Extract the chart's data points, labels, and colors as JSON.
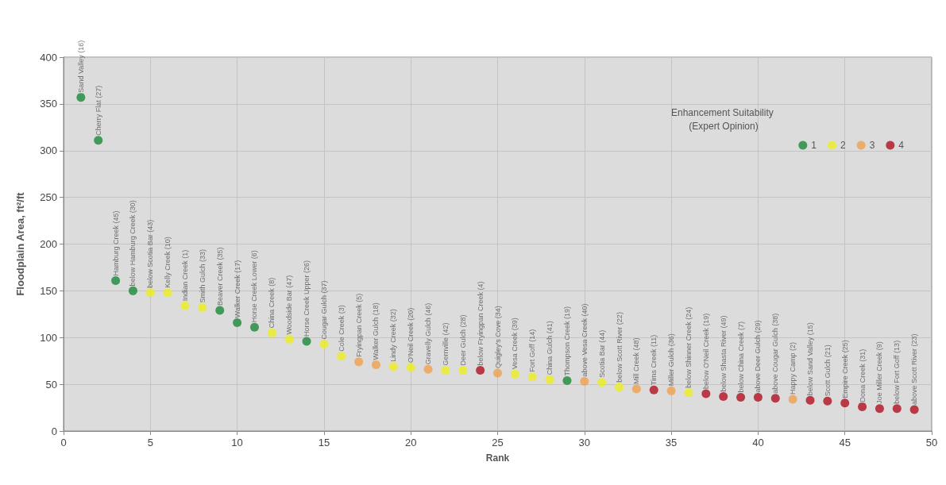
{
  "chart_data": {
    "type": "scatter",
    "xlabel": "Rank",
    "ylabel": "Floodplain Area, ft²/ft",
    "legend_title": "Enhancement Suitability (Expert Opinion)",
    "xlim": [
      0,
      50
    ],
    "xticks": [
      0,
      5,
      10,
      15,
      20,
      25,
      30,
      35,
      40,
      45,
      50
    ],
    "ylim": [
      0,
      400
    ],
    "yticks": [
      0,
      50,
      100,
      150,
      200,
      250,
      300,
      350,
      400
    ],
    "grid": true,
    "legend": "top right",
    "marker": "circle",
    "series": [
      {
        "name": "1",
        "color": "#1a8a3a",
        "x": [
          1,
          2,
          3,
          4,
          9,
          10,
          11,
          14,
          29
        ],
        "values": [
          357,
          311,
          161,
          150,
          129,
          116,
          111,
          96,
          54
        ]
      },
      {
        "name": "2",
        "color": "#eeee22",
        "x": [
          5,
          6,
          7,
          8,
          12,
          13,
          15,
          16,
          19,
          20,
          22,
          23,
          26,
          27,
          28,
          31,
          32,
          36
        ],
        "values": [
          148,
          148,
          134,
          132,
          105,
          98,
          93,
          80,
          69,
          68,
          65,
          65,
          61,
          58,
          55,
          52,
          47,
          41
        ]
      },
      {
        "name": "3",
        "color": "#f0a050",
        "x": [
          17,
          18,
          21,
          25,
          30,
          33,
          35,
          42
        ],
        "values": [
          74,
          71,
          66,
          62,
          53,
          45,
          43,
          34
        ]
      },
      {
        "name": "4",
        "color": "#b01020",
        "x": [
          24,
          34,
          37,
          38,
          39,
          40,
          41,
          43,
          44,
          45,
          46,
          47,
          48,
          49
        ],
        "values": [
          65,
          44,
          40,
          37,
          36,
          36,
          35,
          33,
          32,
          30,
          26,
          24,
          24,
          23
        ]
      }
    ],
    "annotations": [
      {
        "text": "Sand Valley (16)",
        "x": 1,
        "y": 357
      },
      {
        "text": "Cherry Flat (27)",
        "x": 2,
        "y": 311
      },
      {
        "text": "Hamburg Creek (45)",
        "x": 3,
        "y": 161
      },
      {
        "text": "below Hamburg Creek (30)",
        "x": 4,
        "y": 150
      },
      {
        "text": "below Scotia Bar (43)",
        "x": 5,
        "y": 148
      },
      {
        "text": "Kelly Creek (10)",
        "x": 6,
        "y": 148
      },
      {
        "text": "Indian Creek (1)",
        "x": 7,
        "y": 134
      },
      {
        "text": "Smith Gulch (33)",
        "x": 8,
        "y": 132
      },
      {
        "text": "Beaver Creek (35)",
        "x": 9,
        "y": 129
      },
      {
        "text": "Walker Creek (17)",
        "x": 10,
        "y": 116
      },
      {
        "text": "Horse Creek Lower (6)",
        "x": 11,
        "y": 111
      },
      {
        "text": "China Creek (8)",
        "x": 12,
        "y": 105
      },
      {
        "text": "Woodside Bar (47)",
        "x": 13,
        "y": 98
      },
      {
        "text": "Horse Creek Upper (26)",
        "x": 14,
        "y": 96
      },
      {
        "text": "Cougar Gulch (37)",
        "x": 15,
        "y": 93
      },
      {
        "text": "Cole Creek (3)",
        "x": 16,
        "y": 80
      },
      {
        "text": "Fryingpan Creek (5)",
        "x": 17,
        "y": 74
      },
      {
        "text": "Walker Gulch (18)",
        "x": 18,
        "y": 71
      },
      {
        "text": "Lindy Creek (32)",
        "x": 19,
        "y": 69
      },
      {
        "text": "O'Neil Creek (20)",
        "x": 20,
        "y": 68
      },
      {
        "text": "Gravelly Gulch (46)",
        "x": 21,
        "y": 66
      },
      {
        "text": "Gernville (42)",
        "x": 22,
        "y": 65
      },
      {
        "text": "Deer Gulch (28)",
        "x": 23,
        "y": 65
      },
      {
        "text": "below Fryingpan Creek (4)",
        "x": 24,
        "y": 65
      },
      {
        "text": "Quigley's Cove (34)",
        "x": 25,
        "y": 62
      },
      {
        "text": "Vesa Creek (39)",
        "x": 26,
        "y": 61
      },
      {
        "text": "Fort Goff (14)",
        "x": 27,
        "y": 58
      },
      {
        "text": "China Gulch (41)",
        "x": 28,
        "y": 55
      },
      {
        "text": "Thompson Creek (19)",
        "x": 29,
        "y": 54
      },
      {
        "text": "above Vesa Creek (40)",
        "x": 30,
        "y": 53
      },
      {
        "text": "Scotia Bar (44)",
        "x": 31,
        "y": 52
      },
      {
        "text": "below Scott River (22)",
        "x": 32,
        "y": 47
      },
      {
        "text": "Mill Creek (48)",
        "x": 33,
        "y": 45
      },
      {
        "text": "Tims Creek (11)",
        "x": 34,
        "y": 44
      },
      {
        "text": "Miller Gulch (36)",
        "x": 35,
        "y": 43
      },
      {
        "text": "below Shinner Creek (24)",
        "x": 36,
        "y": 41
      },
      {
        "text": "below O'Neil Creek (19)",
        "x": 37,
        "y": 40
      },
      {
        "text": "below Shasta River (49)",
        "x": 38,
        "y": 37
      },
      {
        "text": "below China Creek (7)",
        "x": 39,
        "y": 36
      },
      {
        "text": "above Deer Gulch (29)",
        "x": 40,
        "y": 36
      },
      {
        "text": "above Cougar Gulch (38)",
        "x": 41,
        "y": 35
      },
      {
        "text": "Happy Camp (2)",
        "x": 42,
        "y": 34
      },
      {
        "text": "below Sand Valley (15)",
        "x": 43,
        "y": 33
      },
      {
        "text": "Scott Gulch (21)",
        "x": 44,
        "y": 32
      },
      {
        "text": "Empire Creek (25)",
        "x": 45,
        "y": 30
      },
      {
        "text": "Dona Creek (31)",
        "x": 46,
        "y": 26
      },
      {
        "text": "Joe Miller Creek (9)",
        "x": 47,
        "y": 24
      },
      {
        "text": "below Fort Goff (13)",
        "x": 48,
        "y": 24
      },
      {
        "text": "above Scott River (23)",
        "x": 49,
        "y": 23
      }
    ]
  }
}
